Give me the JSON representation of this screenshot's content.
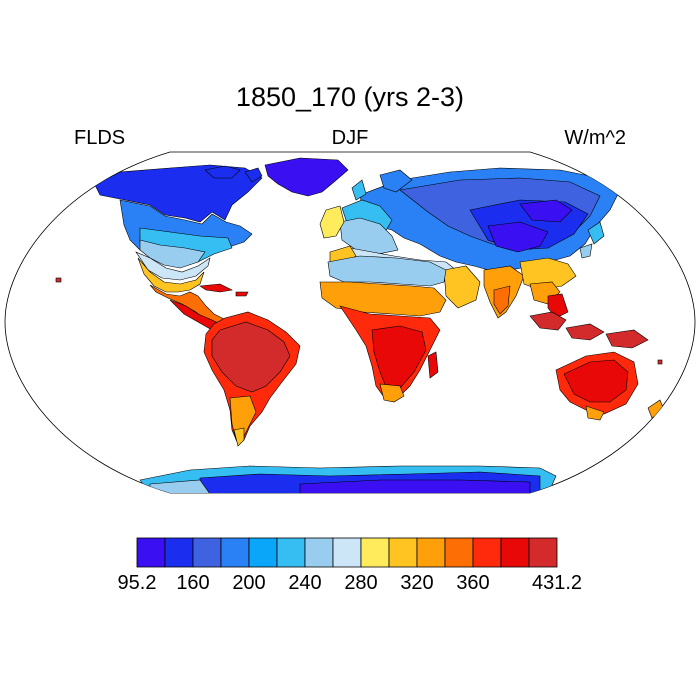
{
  "title": "1850_170 (yrs 2-3)",
  "left_label": "FLDS",
  "center_label": "DJF",
  "right_label": "W/m^2",
  "colorbar": {
    "colors": [
      "#3a0ff2",
      "#1b2ef0",
      "#3f63e0",
      "#2a80f5",
      "#0aa6fa",
      "#36bef2",
      "#98cdf0",
      "#cde6f7",
      "#ffeb5c",
      "#ffc322",
      "#ff9f0a",
      "#fd6f04",
      "#ff2a0b",
      "#e80808",
      "#d32b2b"
    ],
    "labels": [
      {
        "text": "95.2",
        "index": 0
      },
      {
        "text": "160",
        "index": 2
      },
      {
        "text": "200",
        "index": 4
      },
      {
        "text": "240",
        "index": 6
      },
      {
        "text": "280",
        "index": 8
      },
      {
        "text": "320",
        "index": 10
      },
      {
        "text": "360",
        "index": 12
      },
      {
        "text": "431.2",
        "index": 15
      }
    ]
  }
}
